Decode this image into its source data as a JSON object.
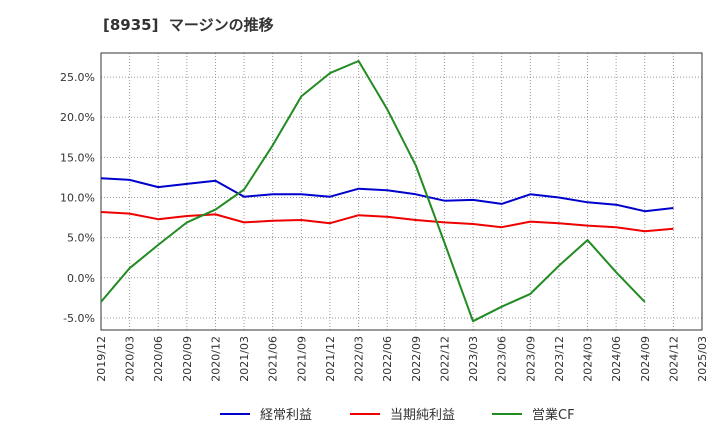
{
  "chart_data": {
    "type": "line",
    "title": "[8935]  マージンの推移",
    "xlabel": "",
    "ylabel": "",
    "ylim": [
      -6.5,
      28
    ],
    "yticks": [
      -5,
      0,
      5,
      10,
      15,
      20,
      25
    ],
    "ytick_labels": [
      "-5.0%",
      "0.0%",
      "5.0%",
      "10.0%",
      "15.0%",
      "20.0%",
      "25.0%"
    ],
    "grid": true,
    "legend_position": "bottom",
    "categories": [
      "2019/12",
      "2020/03",
      "2020/06",
      "2020/09",
      "2020/12",
      "2021/03",
      "2021/06",
      "2021/09",
      "2021/12",
      "2022/03",
      "2022/06",
      "2022/09",
      "2022/12",
      "2023/03",
      "2023/06",
      "2023/09",
      "2023/12",
      "2024/03",
      "2024/06",
      "2024/09",
      "2024/12",
      "2025/03"
    ],
    "series": [
      {
        "name": "経常利益",
        "color": "#0000cc",
        "values": [
          12.4,
          12.2,
          11.3,
          11.7,
          12.1,
          10.1,
          10.4,
          10.4,
          10.1,
          11.1,
          10.9,
          10.4,
          9.6,
          9.7,
          9.2,
          10.4,
          10.0,
          9.4,
          9.1,
          8.3,
          8.7,
          null
        ]
      },
      {
        "name": "当期純利益",
        "color": "#ee0000",
        "values": [
          8.2,
          8.0,
          7.3,
          7.7,
          7.9,
          6.9,
          7.1,
          7.2,
          6.8,
          7.8,
          7.6,
          7.2,
          6.9,
          6.7,
          6.3,
          7.0,
          6.8,
          6.5,
          6.3,
          5.8,
          6.1,
          null
        ]
      },
      {
        "name": "営業CF",
        "color": "#228b22",
        "values": [
          -3.0,
          1.2,
          4.1,
          6.9,
          8.5,
          11.0,
          16.5,
          22.6,
          25.5,
          27.0,
          21.0,
          14.0,
          4.4,
          -5.4,
          -3.6,
          -2.0,
          1.5,
          4.7,
          0.7,
          -3.0,
          null,
          null
        ]
      }
    ]
  }
}
